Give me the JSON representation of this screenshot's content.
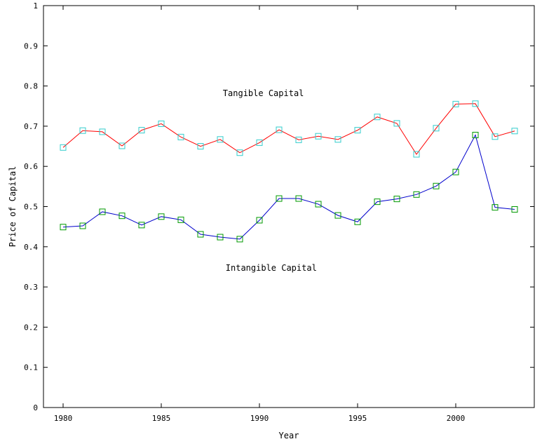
{
  "chart_data": {
    "type": "line",
    "title": "",
    "xlabel": "Year",
    "ylabel": "Price of Capital",
    "xlim": [
      1979,
      2004
    ],
    "ylim": [
      0,
      1
    ],
    "grid": false,
    "x_ticks": [
      "1980",
      "1985",
      "1990",
      "1995",
      "2000"
    ],
    "y_ticks": [
      "0",
      "0.1",
      "0.2",
      "0.3",
      "0.4",
      "0.5",
      "0.6",
      "0.7",
      "0.8",
      "0.9",
      "1"
    ],
    "x": [
      1980,
      1981,
      1982,
      1983,
      1984,
      1985,
      1986,
      1987,
      1988,
      1989,
      1990,
      1991,
      1992,
      1993,
      1994,
      1995,
      1996,
      1997,
      1998,
      1999,
      2000,
      2001,
      2002,
      2003
    ],
    "series": [
      {
        "line_color": "#ff0000",
        "marker_color": "#33cccc",
        "values": [
          0.647,
          0.689,
          0.686,
          0.651,
          0.69,
          0.706,
          0.673,
          0.65,
          0.667,
          0.634,
          0.659,
          0.691,
          0.666,
          0.675,
          0.667,
          0.69,
          0.723,
          0.707,
          0.63,
          0.695,
          0.755,
          0.756,
          0.674,
          0.688
        ]
      },
      {
        "line_color": "#0000cc",
        "marker_color": "#009900",
        "values": [
          0.449,
          0.452,
          0.487,
          0.477,
          0.454,
          0.475,
          0.467,
          0.431,
          0.424,
          0.419,
          0.466,
          0.52,
          0.52,
          0.506,
          0.478,
          0.462,
          0.512,
          0.519,
          0.53,
          0.551,
          0.586,
          0.678,
          0.498,
          0.493
        ]
      }
    ],
    "annotations": [
      {
        "text": "Tangible Capital",
        "x": 1990.2,
        "y": 0.775
      },
      {
        "text": "Intangible Capital",
        "x": 1990.6,
        "y": 0.34
      }
    ]
  }
}
